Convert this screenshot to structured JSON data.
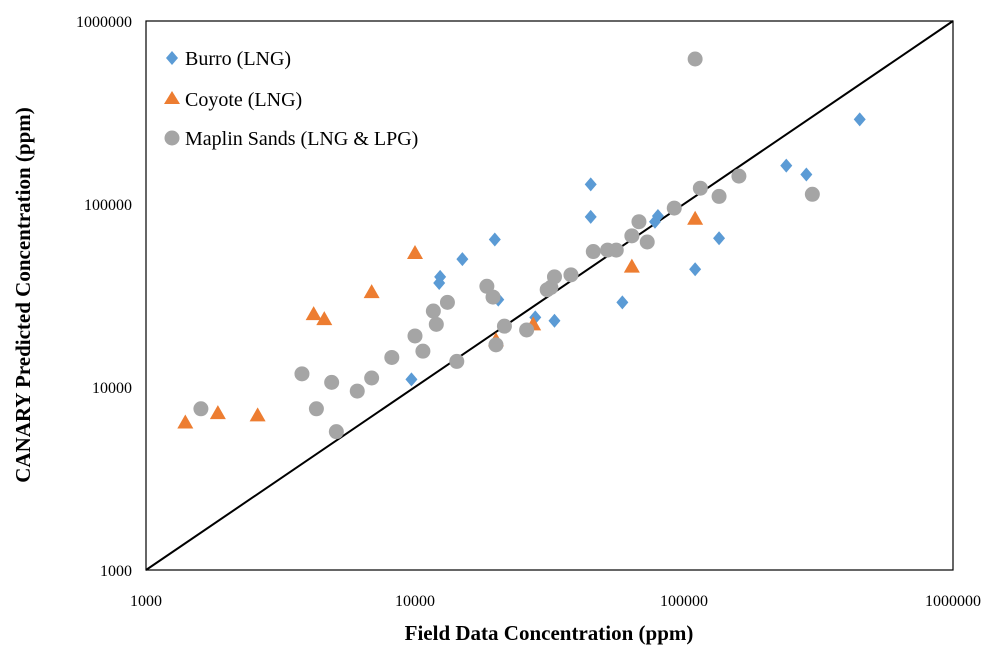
{
  "chart_data": {
    "type": "scatter",
    "title": "",
    "xlabel": "Field Data Concentration (ppm)",
    "ylabel": "CANARY Predicted Concentration (ppm)",
    "xscale": "log",
    "yscale": "log",
    "xlim": [
      1000,
      1000000
    ],
    "ylim": [
      1000,
      1000000
    ],
    "xticks": [
      "1000",
      "10000",
      "100000",
      "1000000"
    ],
    "yticks": [
      "1000",
      "10000",
      "100000",
      "1000000"
    ],
    "grid": false,
    "legend_position": "top-left",
    "reference_line": {
      "type": "line",
      "from": [
        1000,
        1000
      ],
      "to": [
        1000000,
        1000000
      ],
      "color": "#000000"
    },
    "series": [
      {
        "name": "Burro (LNG)",
        "marker": "diamond",
        "color": "#5B9BD5",
        "points": [
          [
            9700,
            11000
          ],
          [
            12300,
            37000
          ],
          [
            12400,
            40000
          ],
          [
            15000,
            50000
          ],
          [
            19800,
            64000
          ],
          [
            20400,
            30000
          ],
          [
            28000,
            24000
          ],
          [
            33000,
            23000
          ],
          [
            45000,
            85000
          ],
          [
            45000,
            128000
          ],
          [
            59000,
            29000
          ],
          [
            78000,
            80000
          ],
          [
            80000,
            86000
          ],
          [
            110000,
            44000
          ],
          [
            135000,
            65000
          ],
          [
            240000,
            162000
          ],
          [
            285000,
            145000
          ],
          [
            450000,
            290000
          ]
        ]
      },
      {
        "name": "Coyote (LNG)",
        "marker": "triangle",
        "color": "#ED7D31",
        "points": [
          [
            1400,
            6400
          ],
          [
            1850,
            7200
          ],
          [
            2600,
            7000
          ],
          [
            4200,
            25000
          ],
          [
            4600,
            23500
          ],
          [
            6900,
            33000
          ],
          [
            10000,
            54000
          ],
          [
            20000,
            18000
          ],
          [
            27500,
            22000
          ],
          [
            64000,
            45500
          ],
          [
            110000,
            83000
          ]
        ]
      },
      {
        "name": "Maplin Sands (LNG & LPG)",
        "marker": "circle",
        "color": "#A5A5A5",
        "points": [
          [
            1600,
            7600
          ],
          [
            3800,
            11800
          ],
          [
            4300,
            7600
          ],
          [
            4900,
            10600
          ],
          [
            5100,
            5700
          ],
          [
            6100,
            9500
          ],
          [
            6900,
            11200
          ],
          [
            8200,
            14500
          ],
          [
            10000,
            19000
          ],
          [
            10700,
            15700
          ],
          [
            11700,
            26000
          ],
          [
            12000,
            22000
          ],
          [
            13200,
            29000
          ],
          [
            14300,
            13800
          ],
          [
            18500,
            35500
          ],
          [
            19500,
            31000
          ],
          [
            20000,
            17000
          ],
          [
            21500,
            21500
          ],
          [
            26000,
            20500
          ],
          [
            31000,
            34000
          ],
          [
            32000,
            35000
          ],
          [
            33000,
            40000
          ],
          [
            38000,
            41000
          ],
          [
            46000,
            55000
          ],
          [
            52000,
            56000
          ],
          [
            56000,
            56000
          ],
          [
            64000,
            67000
          ],
          [
            68000,
            80000
          ],
          [
            73000,
            62000
          ],
          [
            92000,
            95000
          ],
          [
            110000,
            620000
          ],
          [
            115000,
            122000
          ],
          [
            135000,
            110000
          ],
          [
            160000,
            142000
          ],
          [
            300000,
            113000
          ]
        ]
      }
    ]
  }
}
